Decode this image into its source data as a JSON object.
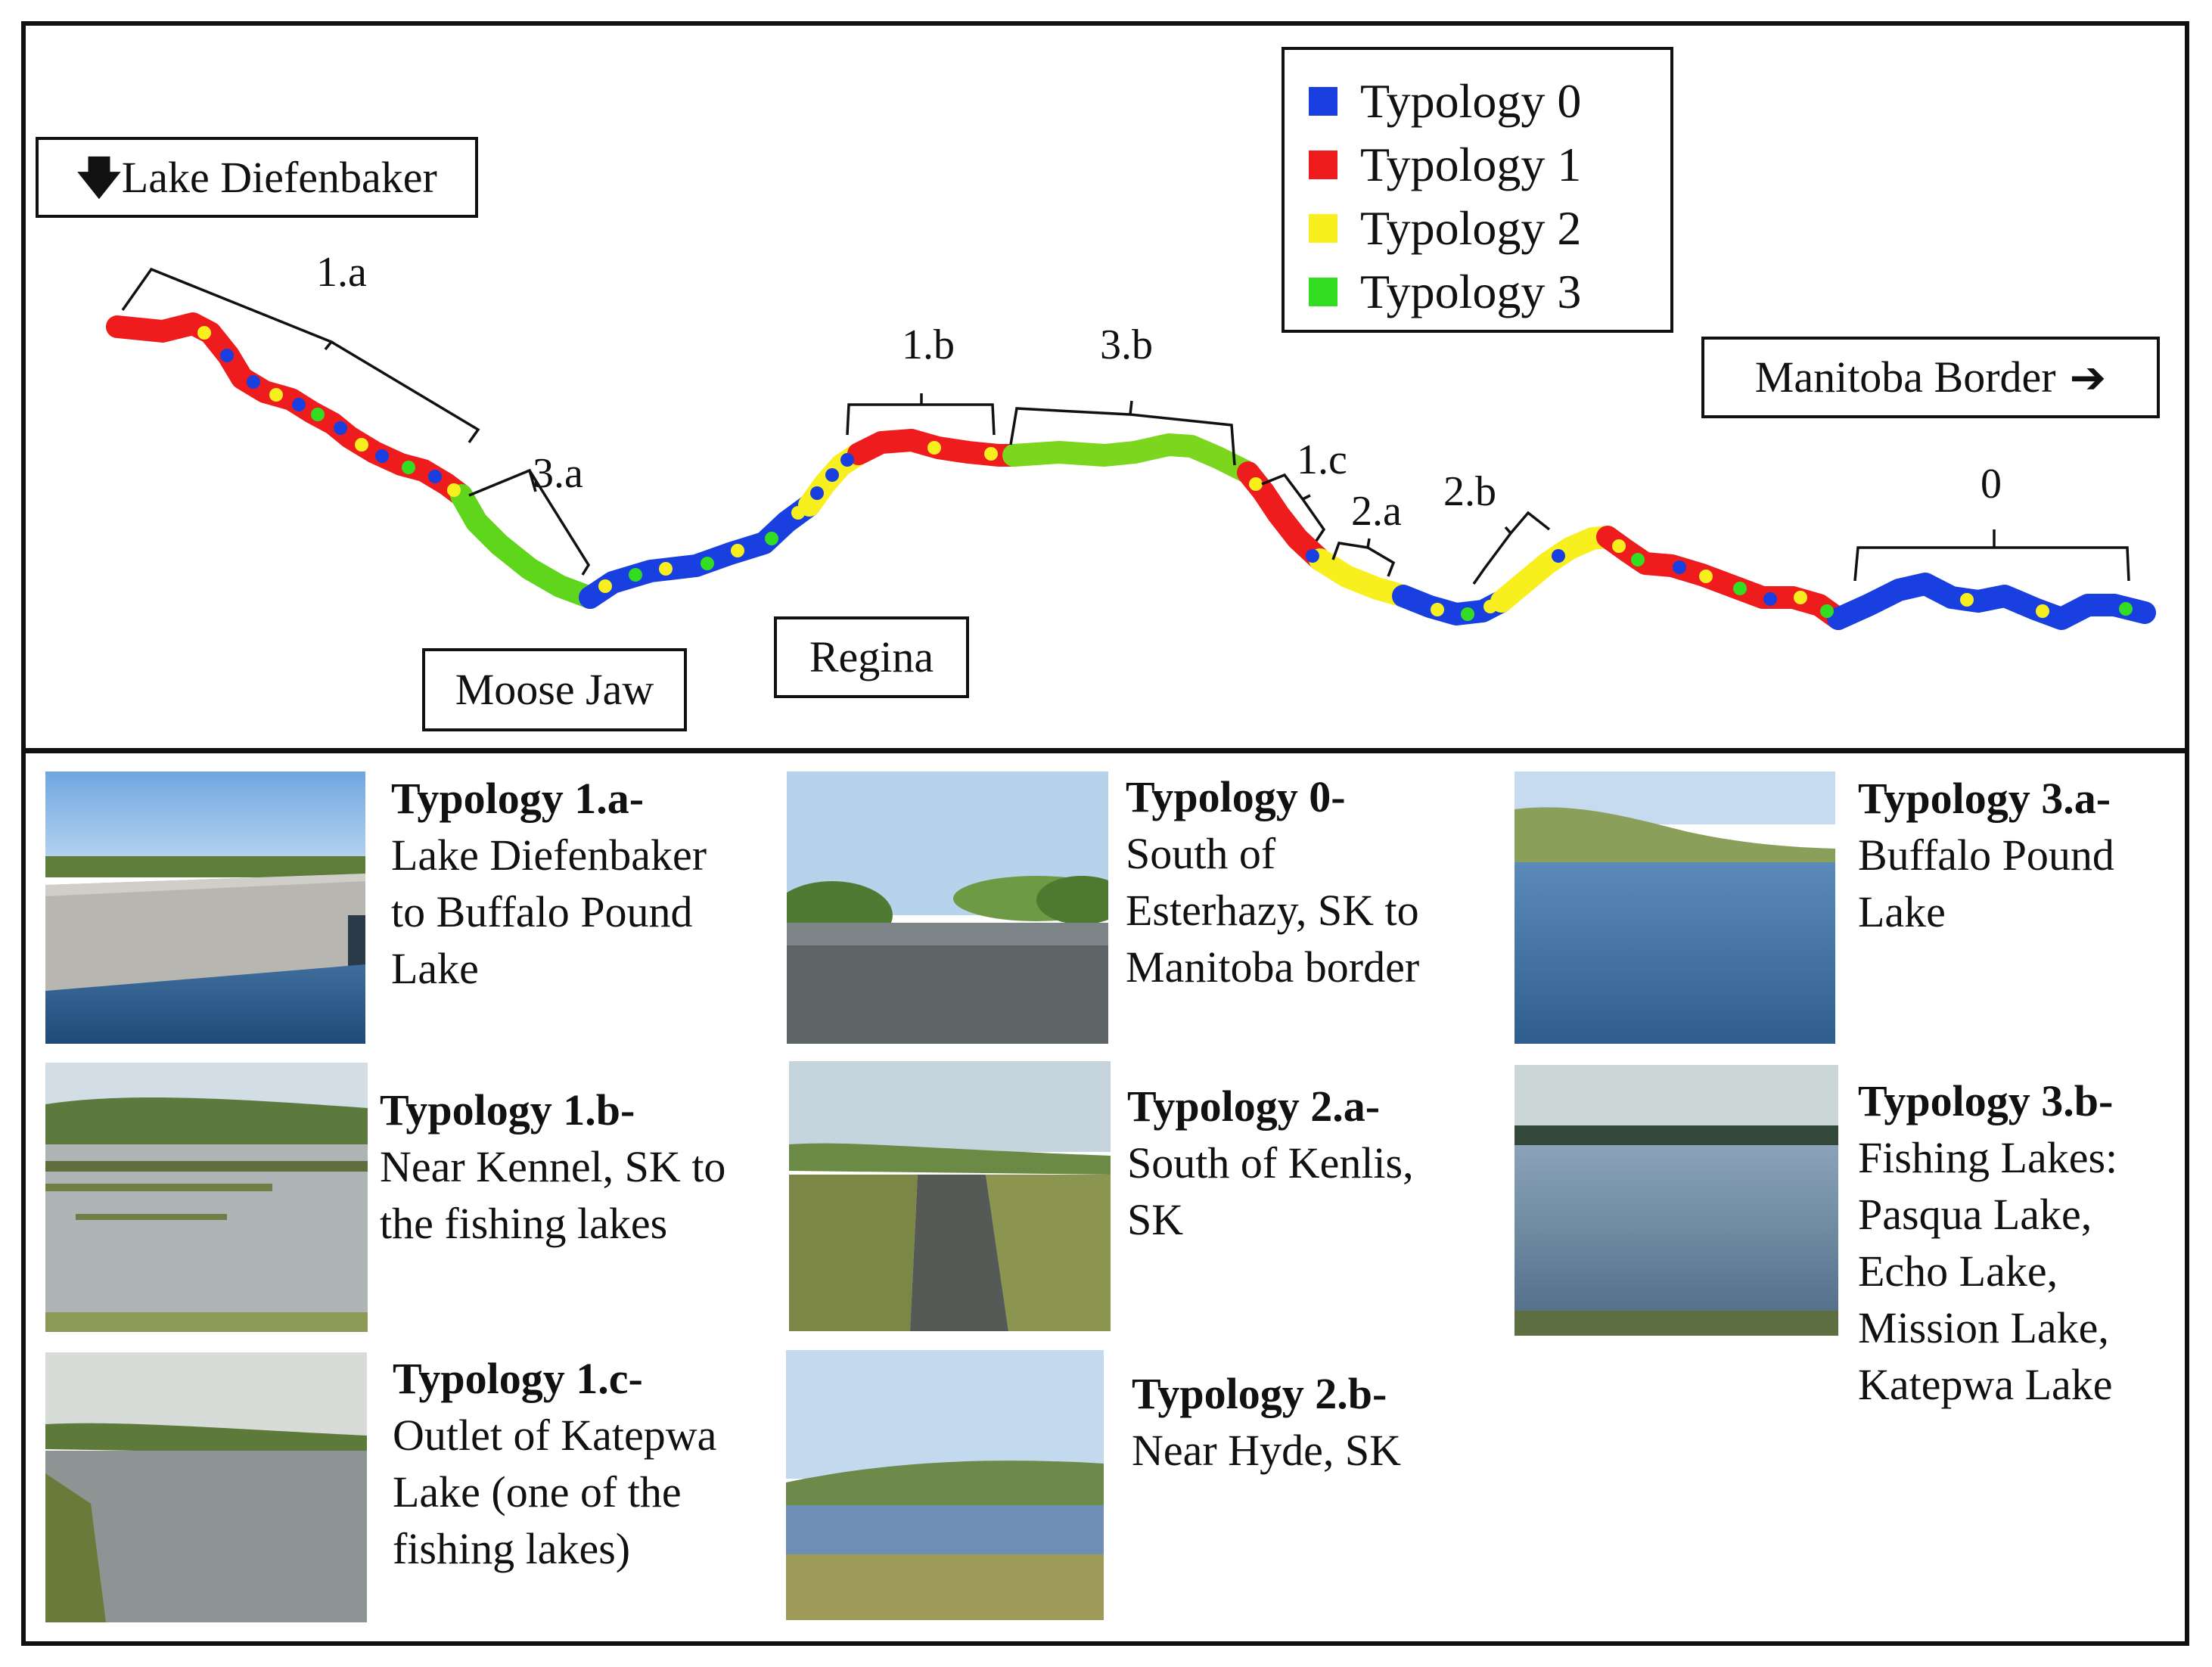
{
  "legend": [
    {
      "label": "Typology 0",
      "color": "#1a3fe0"
    },
    {
      "label": "Typology 1",
      "color": "#ee1c1c"
    },
    {
      "label": "Typology 2",
      "color": "#f7f01e"
    },
    {
      "label": "Typology 3",
      "color": "#33dd22"
    }
  ],
  "places": {
    "lake_diefenbaker": {
      "arrow": "🡇",
      "label": "Lake Diefenbaker"
    },
    "manitoba_border": {
      "label": "Manitoba Border",
      "arrow": "➔"
    },
    "moose_jaw": {
      "label": "Moose Jaw"
    },
    "regina": {
      "label": "Regina"
    }
  },
  "segments": {
    "s1a": "1.a",
    "s3a": "3.a",
    "s1b": "1.b",
    "s3b": "3.b",
    "s1c": "1.c",
    "s2a": "2.a",
    "s2b": "2.b",
    "s0": "0"
  },
  "gallery": {
    "t1a": {
      "title": "Typology 1.a-",
      "lines": [
        "Lake Diefenbaker",
        "to Buffalo Pound",
        "Lake"
      ]
    },
    "t0": {
      "title": "Typology 0-",
      "lines": [
        "South of",
        "Esterhazy, SK to",
        "Manitoba border"
      ]
    },
    "t3a": {
      "title": "Typology 3.a-",
      "lines": [
        "Buffalo Pound",
        "Lake"
      ]
    },
    "t1b": {
      "title": "Typology 1.b-",
      "lines": [
        "Near Kennel, SK to",
        "the fishing lakes"
      ]
    },
    "t2a": {
      "title": "Typology 2.a-",
      "lines": [
        "South of Kenlis,",
        "SK"
      ]
    },
    "t3b": {
      "title": "Typology 3.b-",
      "lines": [
        "Fishing Lakes:",
        "Pasqua Lake,",
        "Echo Lake,",
        "Mission Lake,",
        "Katepwa Lake"
      ]
    },
    "t1c": {
      "title": "Typology 1.c-",
      "lines": [
        "Outlet of Katepwa",
        "Lake (one of the",
        "fishing lakes)"
      ]
    },
    "t2b": {
      "title": "Typology 2.b-",
      "lines": [
        "Near Hyde, SK"
      ]
    }
  }
}
